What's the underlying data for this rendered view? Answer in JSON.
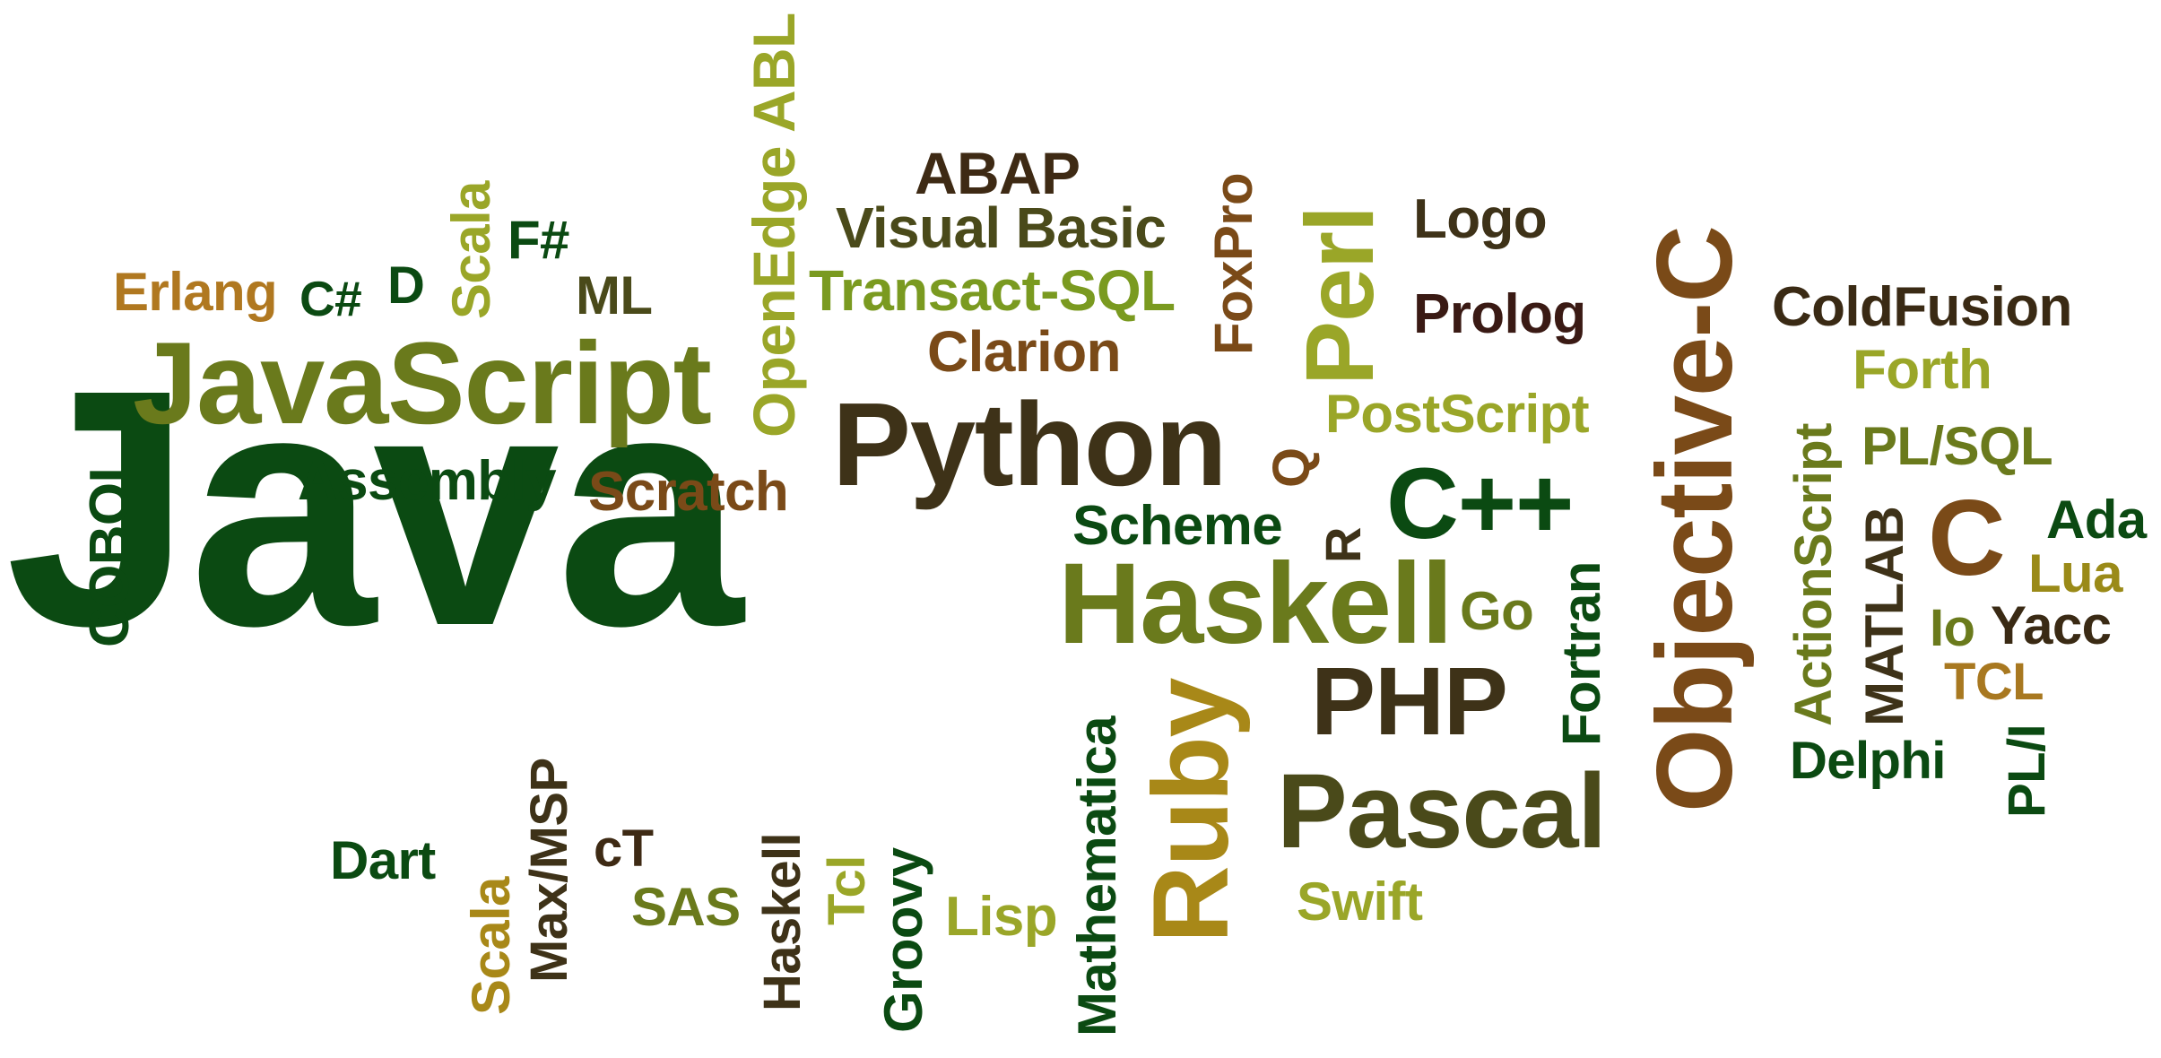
{
  "words": [
    {
      "text": "Java",
      "color": "#0b4a12"
    },
    {
      "text": "JavaScript",
      "color": "#6a7a1c"
    },
    {
      "text": "Python",
      "color": "#3e3218"
    },
    {
      "text": "Haskell",
      "color": "#6a7a1c"
    },
    {
      "text": "PHP",
      "color": "#3e3218"
    },
    {
      "text": "Pascal",
      "color": "#4a4a1a"
    },
    {
      "text": "C++",
      "color": "#0b4a12"
    },
    {
      "text": "Objective-C",
      "color": "#7a4a18"
    },
    {
      "text": "Ruby",
      "color": "#a88818"
    },
    {
      "text": "Perl",
      "color": "#9aa628"
    },
    {
      "text": "C",
      "color": "#7a4a18"
    },
    {
      "text": "Erlang",
      "color": "#b07820"
    },
    {
      "text": "C#",
      "color": "#0b4a12"
    },
    {
      "text": "D",
      "color": "#0b4a12"
    },
    {
      "text": "Scala",
      "color": "#9aa628"
    },
    {
      "text": "F#",
      "color": "#0b4a12"
    },
    {
      "text": "ML",
      "color": "#4a4a1a"
    },
    {
      "text": "OpenEdge ABL",
      "color": "#9aa628"
    },
    {
      "text": "ABAP",
      "color": "#3e2a14"
    },
    {
      "text": "Visual Basic",
      "color": "#4a4a1a"
    },
    {
      "text": "Transact-SQL",
      "color": "#7a9a20"
    },
    {
      "text": "Clarion",
      "color": "#7a4a18"
    },
    {
      "text": "FoxPro",
      "color": "#7a4a18"
    },
    {
      "text": "Logo",
      "color": "#3e3218"
    },
    {
      "text": "Prolog",
      "color": "#3a1a14"
    },
    {
      "text": "ColdFusion",
      "color": "#3a2a14"
    },
    {
      "text": "Forth",
      "color": "#9aa628"
    },
    {
      "text": "PL/SQL",
      "color": "#6a7a1c"
    },
    {
      "text": "Ada",
      "color": "#0b4a12"
    },
    {
      "text": "Lua",
      "color": "#9a8a18"
    },
    {
      "text": "Yacc",
      "color": "#3a2a14"
    },
    {
      "text": "Io",
      "color": "#6a7a1c"
    },
    {
      "text": "TCL",
      "color": "#a87820"
    },
    {
      "text": "PL/I",
      "color": "#0b4a12"
    },
    {
      "text": "Delphi",
      "color": "#0b4a12"
    },
    {
      "text": "MATLAB",
      "color": "#3e3218"
    },
    {
      "text": "ActionScript",
      "color": "#6a7a1c"
    },
    {
      "text": "PostScript",
      "color": "#9aa628"
    },
    {
      "text": "Q",
      "color": "#7a4a18"
    },
    {
      "text": "R",
      "color": "#3e3218"
    },
    {
      "text": "Scheme",
      "color": "#0b4a12"
    },
    {
      "text": "Go",
      "color": "#6a7a1c"
    },
    {
      "text": "Fortran",
      "color": "#0b4a12"
    },
    {
      "text": "Assembly",
      "color": "#0b4a12"
    },
    {
      "text": "Scratch",
      "color": "#7a4a18"
    },
    {
      "text": "COBOL",
      "color": "#0b4a12"
    },
    {
      "text": "Dart",
      "color": "#0b4a12"
    },
    {
      "text": "Scala",
      "color": "#a88818"
    },
    {
      "text": "Max/MSP",
      "color": "#3e3218"
    },
    {
      "text": "cT",
      "color": "#3e2a14"
    },
    {
      "text": "SAS",
      "color": "#6a7a1c"
    },
    {
      "text": "Haskell",
      "color": "#3e3218"
    },
    {
      "text": "Tcl",
      "color": "#9aa628"
    },
    {
      "text": "Groovy",
      "color": "#0b4a12"
    },
    {
      "text": "Lisp",
      "color": "#9aa628"
    },
    {
      "text": "Mathematica",
      "color": "#0b4a12"
    },
    {
      "text": "Swift",
      "color": "#9aa628"
    }
  ]
}
